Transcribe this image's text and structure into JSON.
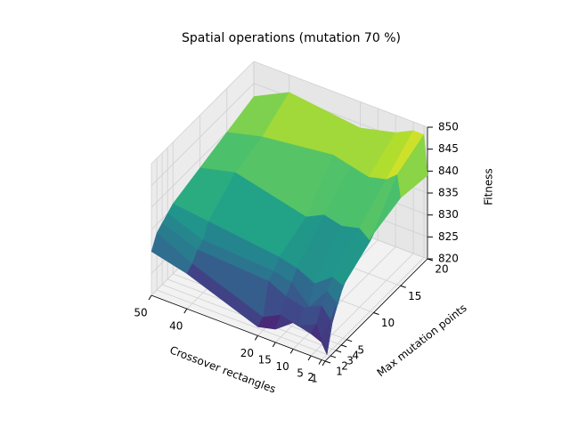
{
  "chart_data": {
    "type": "surface",
    "title": "Spatial operations (mutation 70 %)",
    "xlabel": "Crossover rectangles",
    "ylabel": "Max mutation points",
    "zlabel": "Fitness",
    "x": [
      1,
      2,
      5,
      10,
      15,
      20,
      40,
      50
    ],
    "y": [
      1,
      2,
      3,
      4,
      5,
      10,
      15,
      20
    ],
    "z": [
      [
        827,
        824,
        825,
        826,
        823,
        822,
        828,
        830
      ],
      [
        828,
        820,
        826,
        824,
        825,
        823,
        829,
        833
      ],
      [
        830,
        826,
        829,
        827,
        828,
        830,
        831,
        834
      ],
      [
        832,
        829,
        831,
        826,
        830,
        831,
        832,
        835
      ],
      [
        834,
        832,
        833,
        830,
        832,
        833,
        835,
        836
      ],
      [
        838,
        836,
        838,
        837,
        838,
        836,
        840,
        838
      ],
      [
        840,
        845,
        843,
        842,
        843,
        844,
        842,
        840
      ],
      [
        839,
        848,
        848,
        846,
        845,
        844,
        846,
        842
      ]
    ],
    "xlim": [
      50,
      1
    ],
    "ylim": [
      1,
      20
    ],
    "zlim": [
      820,
      850
    ],
    "xticks": [
      1,
      2,
      5,
      10,
      15,
      20,
      40,
      50
    ],
    "yticks": [
      1,
      2,
      3,
      4,
      5,
      10,
      15,
      20
    ],
    "zticks": [
      820,
      825,
      830,
      835,
      840,
      845,
      850
    ],
    "colormap": "viridis",
    "grid": true
  }
}
